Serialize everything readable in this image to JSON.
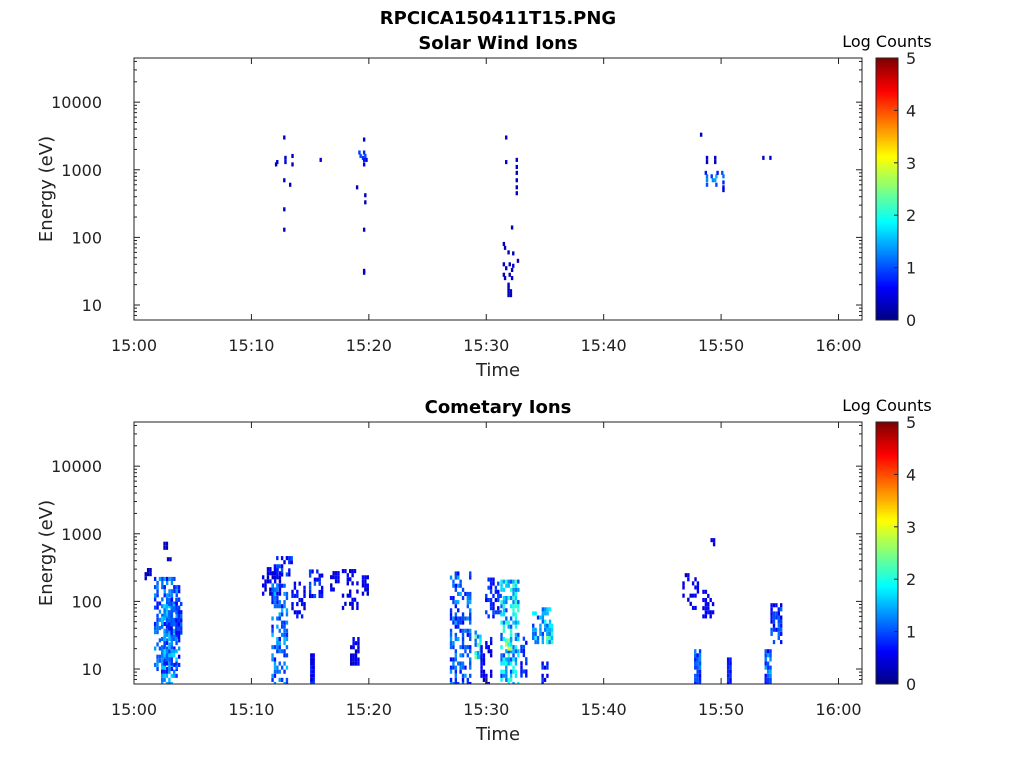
{
  "figure_title": "RPCICA150411T15.PNG",
  "chart_data": [
    {
      "type": "heatmap",
      "title": "Solar Wind Ions",
      "xlabel": "Time",
      "ylabel": "Energy (eV)",
      "x_ticks": [
        "15:00",
        "15:10",
        "15:20",
        "15:30",
        "15:40",
        "15:50",
        "16:00"
      ],
      "y_ticks": [
        "10",
        "100",
        "1000",
        "10000"
      ],
      "yscale": "log",
      "xlim_minutes": [
        0,
        62
      ],
      "ylim": [
        6,
        45000
      ],
      "colorbar": {
        "label": "Log Counts",
        "min": 0,
        "max": 5,
        "ticks": [
          "0",
          "1",
          "2",
          "3",
          "4",
          "5"
        ],
        "colormap": "jet"
      },
      "cells": [
        [
          12.2,
          1300,
          0.3
        ],
        [
          12.1,
          1200,
          0.3
        ],
        [
          12.8,
          3000,
          0.3
        ],
        [
          12.9,
          1500,
          0.4
        ],
        [
          12.9,
          1300,
          0.5
        ],
        [
          13.5,
          1600,
          0.3
        ],
        [
          13.5,
          1200,
          0.3
        ],
        [
          12.8,
          700,
          0.3
        ],
        [
          13.3,
          600,
          0.3
        ],
        [
          12.8,
          260,
          0.3
        ],
        [
          12.8,
          130,
          0.3
        ],
        [
          15.9,
          1400,
          0.5
        ],
        [
          19.2,
          1800,
          0.9
        ],
        [
          19.3,
          1600,
          1.0
        ],
        [
          19.5,
          1500,
          0.9
        ],
        [
          19.6,
          1800,
          0.8
        ],
        [
          19.7,
          1600,
          1.0
        ],
        [
          19.6,
          1400,
          0.7
        ],
        [
          19.6,
          1200,
          0.6
        ],
        [
          19.8,
          1400,
          0.5
        ],
        [
          19.6,
          2800,
          0.3
        ],
        [
          19.0,
          550,
          0.3
        ],
        [
          19.7,
          420,
          0.3
        ],
        [
          19.7,
          330,
          0.3
        ],
        [
          19.6,
          130,
          0.3
        ],
        [
          19.6,
          32,
          0.3
        ],
        [
          19.6,
          30,
          0.3
        ],
        [
          31.7,
          3000,
          0.3
        ],
        [
          31.7,
          1300,
          0.4
        ],
        [
          32.6,
          1400,
          0.4
        ],
        [
          32.6,
          1100,
          0.3
        ],
        [
          32.6,
          900,
          0.3
        ],
        [
          32.6,
          700,
          0.3
        ],
        [
          32.6,
          550,
          0.3
        ],
        [
          32.6,
          450,
          0.3
        ],
        [
          32.2,
          140,
          0.3
        ],
        [
          31.5,
          80,
          0.3
        ],
        [
          31.6,
          70,
          0.3
        ],
        [
          31.9,
          60,
          0.3
        ],
        [
          32.3,
          58,
          0.3
        ],
        [
          32.7,
          45,
          0.3
        ],
        [
          31.5,
          40,
          0.3
        ],
        [
          32.0,
          40,
          0.3
        ],
        [
          32.3,
          38,
          0.4
        ],
        [
          31.7,
          35,
          0.3
        ],
        [
          32.2,
          33,
          0.3
        ],
        [
          31.5,
          28,
          0.3
        ],
        [
          32.0,
          28,
          0.3
        ],
        [
          31.6,
          25,
          0.3
        ],
        [
          32.2,
          25,
          0.3
        ],
        [
          31.9,
          20,
          0.3
        ],
        [
          31.9,
          18,
          0.3
        ],
        [
          31.9,
          16,
          0.3
        ],
        [
          32.1,
          16,
          0.3
        ],
        [
          31.9,
          14,
          0.3
        ],
        [
          32.1,
          14,
          0.3
        ],
        [
          48.3,
          3300,
          0.3
        ],
        [
          48.8,
          1500,
          0.4
        ],
        [
          48.8,
          1300,
          0.3
        ],
        [
          49.5,
          1500,
          0.3
        ],
        [
          49.5,
          1300,
          0.3
        ],
        [
          53.6,
          1500,
          0.4
        ],
        [
          54.2,
          1500,
          0.5
        ],
        [
          48.7,
          900,
          0.7
        ],
        [
          48.8,
          800,
          1.2
        ],
        [
          48.8,
          700,
          1.3
        ],
        [
          48.8,
          600,
          1.0
        ],
        [
          49.2,
          800,
          0.9
        ],
        [
          49.3,
          700,
          1.3
        ],
        [
          49.5,
          700,
          1.4
        ],
        [
          49.6,
          800,
          1.5
        ],
        [
          49.6,
          600,
          1.0
        ],
        [
          49.7,
          900,
          0.7
        ],
        [
          50.1,
          900,
          1.0
        ],
        [
          50.2,
          800,
          1.2
        ],
        [
          50.2,
          650,
          0.8
        ],
        [
          50.2,
          550,
          0.5
        ],
        [
          50.2,
          500,
          0.4
        ]
      ]
    },
    {
      "type": "heatmap",
      "title": "Cometary Ions",
      "xlabel": "Time",
      "ylabel": "Energy (eV)",
      "x_ticks": [
        "15:00",
        "15:10",
        "15:20",
        "15:30",
        "15:40",
        "15:50",
        "16:00"
      ],
      "y_ticks": [
        "10",
        "100",
        "1000",
        "10000"
      ],
      "yscale": "log",
      "xlim_minutes": [
        0,
        62
      ],
      "ylim": [
        6,
        45000
      ],
      "colorbar": {
        "label": "Log Counts",
        "min": 0,
        "max": 5,
        "ticks": [
          "0",
          "1",
          "2",
          "3",
          "4",
          "5"
        ],
        "colormap": "jet"
      },
      "clusters": [
        [
          1.8,
          3.9,
          10,
          220,
          1.1,
          0.55
        ],
        [
          2.6,
          3.0,
          620,
          720,
          0.4,
          0.9
        ],
        [
          2.9,
          3.2,
          420,
          480,
          0.4,
          0.9
        ],
        [
          1.0,
          1.5,
          220,
          300,
          0.3,
          0.5
        ],
        [
          2.4,
          3.8,
          6,
          90,
          1.3,
          0.7
        ],
        [
          3.0,
          4.2,
          30,
          110,
          0.9,
          0.6
        ],
        [
          11.0,
          12.5,
          130,
          320,
          0.5,
          0.5
        ],
        [
          11.8,
          13.2,
          6,
          180,
          1.2,
          0.55
        ],
        [
          12.0,
          13.6,
          250,
          480,
          0.8,
          0.5
        ],
        [
          13.5,
          14.6,
          60,
          200,
          0.6,
          0.35
        ],
        [
          15.1,
          15.5,
          6,
          18,
          0.7,
          0.95
        ],
        [
          15.0,
          16.2,
          120,
          300,
          0.8,
          0.5
        ],
        [
          16.8,
          17.6,
          150,
          280,
          0.5,
          0.5
        ],
        [
          17.8,
          19.2,
          80,
          300,
          0.5,
          0.45
        ],
        [
          18.5,
          19.2,
          12,
          30,
          0.5,
          0.5
        ],
        [
          19.5,
          20.0,
          130,
          260,
          0.5,
          0.6
        ],
        [
          27.0,
          28.8,
          6,
          260,
          1.1,
          0.5
        ],
        [
          29.1,
          29.6,
          15,
          35,
          1.9,
          0.8
        ],
        [
          30.0,
          31.3,
          60,
          240,
          0.8,
          0.45
        ],
        [
          29.6,
          30.5,
          6,
          30,
          0.6,
          0.5
        ],
        [
          31.3,
          32.8,
          6,
          220,
          1.6,
          0.6
        ],
        [
          31.7,
          32.3,
          20,
          30,
          2.2,
          0.9
        ],
        [
          33.0,
          33.6,
          8,
          30,
          0.8,
          0.6
        ],
        [
          34.0,
          35.6,
          25,
          80,
          1.4,
          0.6
        ],
        [
          35.2,
          35.7,
          25,
          50,
          1.8,
          0.8
        ],
        [
          34.8,
          35.3,
          6,
          15,
          0.7,
          0.6
        ],
        [
          46.8,
          48.2,
          80,
          250,
          0.5,
          0.35
        ],
        [
          47.8,
          48.3,
          6,
          20,
          1.0,
          0.9
        ],
        [
          48.5,
          49.4,
          60,
          150,
          0.6,
          0.5
        ],
        [
          49.2,
          49.5,
          700,
          850,
          0.5,
          0.9
        ],
        [
          50.6,
          51.0,
          6,
          14,
          0.7,
          0.9
        ],
        [
          53.8,
          54.4,
          6,
          20,
          1.1,
          0.9
        ],
        [
          54.3,
          55.3,
          25,
          90,
          0.9,
          0.65
        ]
      ]
    }
  ]
}
